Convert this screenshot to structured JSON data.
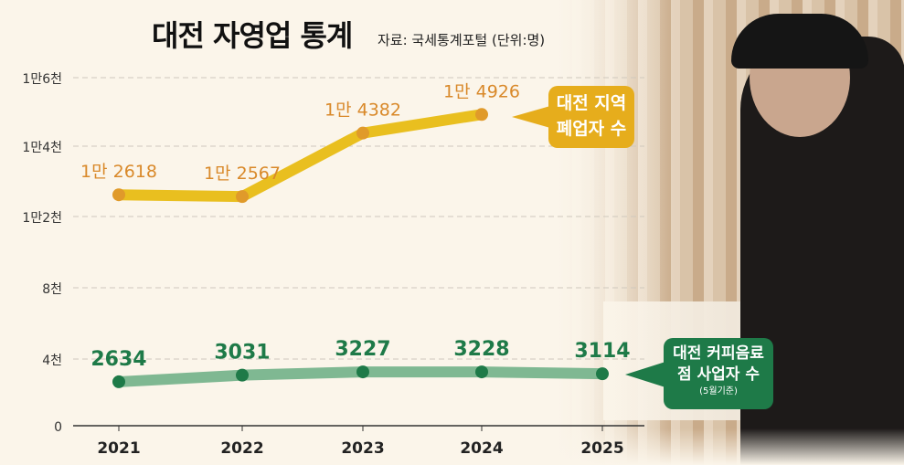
{
  "title": "대전 자영업 통계",
  "subtitle": "자료: 국세통계포털  (단위:명)",
  "chart_data": {
    "type": "line",
    "categories": [
      "2021",
      "2022",
      "2023",
      "2024",
      "2025"
    ],
    "y_ticks": [
      {
        "value": 0,
        "label": "0"
      },
      {
        "value": 4000,
        "label": "4천"
      },
      {
        "value": 8000,
        "label": "8천"
      },
      {
        "value": 12000,
        "label": "1만2천"
      },
      {
        "value": 14000,
        "label": "1만4천"
      },
      {
        "value": 16000,
        "label": "1만6천"
      }
    ],
    "grid": true,
    "series": [
      {
        "name": "대전 지역 폐업자 수",
        "color": "#e9bf1f",
        "label_color": "#d9892a",
        "values": [
          12618,
          12567,
          14382,
          14926,
          null
        ],
        "labels": [
          "1만 2618",
          "1만 2567",
          "1만 4382",
          "1만 4926",
          ""
        ]
      },
      {
        "name": "대전 커피음료점 사업자 수",
        "note": "(5월기준)",
        "color": "#7fb892",
        "label_color": "#1e7a48",
        "values": [
          2634,
          3031,
          3227,
          3228,
          3114
        ],
        "labels": [
          "2634",
          "3031",
          "3227",
          "3228",
          "3114"
        ]
      }
    ]
  }
}
